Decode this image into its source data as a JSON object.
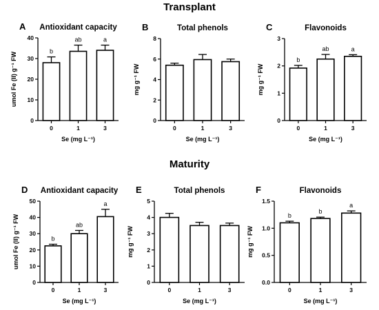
{
  "figure": {
    "sections": [
      {
        "id": "transplant",
        "title": "Transplant"
      },
      {
        "id": "maturity",
        "title": "Maturity"
      }
    ]
  },
  "chart_data": [
    {
      "type": "bar",
      "panel": "A",
      "section": "transplant",
      "title": "Antioxidant capacity",
      "categories": [
        "0",
        "1",
        "3"
      ],
      "values": [
        28,
        33.5,
        34
      ],
      "errors": [
        2.8,
        3,
        2.5
      ],
      "letters": [
        "b",
        "ab",
        "a"
      ],
      "xlabel": "Se (mg L⁻¹)",
      "ylabel": "umol Fe (II) g⁻¹ FW",
      "ylim": [
        0,
        40
      ],
      "yticks": [
        "0",
        "10",
        "20",
        "30",
        "40"
      ]
    },
    {
      "type": "bar",
      "panel": "B",
      "section": "transplant",
      "title": "Total phenols",
      "categories": [
        "0",
        "1",
        "3"
      ],
      "values": [
        5.4,
        5.95,
        5.75
      ],
      "errors": [
        0.2,
        0.5,
        0.25
      ],
      "letters": [
        "",
        "",
        ""
      ],
      "xlabel": "Se (mg L⁻¹)",
      "ylabel": "mg g⁻¹ FW",
      "ylim": [
        0,
        8
      ],
      "yticks": [
        "0",
        "2",
        "4",
        "6",
        "8"
      ]
    },
    {
      "type": "bar",
      "panel": "C",
      "section": "transplant",
      "title": "Flavonoids",
      "categories": [
        "0",
        "1",
        "3"
      ],
      "values": [
        1.92,
        2.25,
        2.35
      ],
      "errors": [
        0.1,
        0.17,
        0.06
      ],
      "letters": [
        "b",
        "ab",
        "a"
      ],
      "xlabel": "Se (mg L⁻¹)",
      "ylabel": "mg g⁻¹ FW",
      "ylim": [
        0,
        3
      ],
      "yticks": [
        "0",
        "1",
        "2",
        "3"
      ]
    },
    {
      "type": "bar",
      "panel": "D",
      "section": "maturity",
      "title": "Antioxidant capacity",
      "categories": [
        "0",
        "1",
        "3"
      ],
      "values": [
        22.5,
        30,
        40.5
      ],
      "errors": [
        1,
        2,
        4.5
      ],
      "letters": [
        "b",
        "ab",
        "a"
      ],
      "xlabel": "Se (mg L⁻¹)",
      "ylabel": "umol Fe (II) g⁻¹ FW",
      "ylim": [
        0,
        50
      ],
      "yticks": [
        "0",
        "10",
        "20",
        "30",
        "40",
        "50"
      ]
    },
    {
      "type": "bar",
      "panel": "E",
      "section": "maturity",
      "title": "Total phenols",
      "categories": [
        "0",
        "1",
        "3"
      ],
      "values": [
        4,
        3.5,
        3.5
      ],
      "errors": [
        0.25,
        0.2,
        0.15
      ],
      "letters": [
        "",
        "",
        ""
      ],
      "xlabel": "Se (mg L⁻¹)",
      "ylabel": "mg g⁻¹ FW",
      "ylim": [
        0,
        5
      ],
      "yticks": [
        "0",
        "1",
        "2",
        "3",
        "4",
        "5"
      ]
    },
    {
      "type": "bar",
      "panel": "F",
      "section": "maturity",
      "title": "Flavonoids",
      "categories": [
        "0",
        "1",
        "3"
      ],
      "values": [
        1.1,
        1.18,
        1.28
      ],
      "errors": [
        0.03,
        0.025,
        0.04
      ],
      "letters": [
        "b",
        "b",
        "a"
      ],
      "xlabel": "Se (mg L⁻¹)",
      "ylabel": "mg g⁻¹ FW",
      "ylim": [
        0,
        1.5
      ],
      "yticks": [
        "0.0",
        "0.5",
        "1.0",
        "1.5"
      ]
    }
  ]
}
